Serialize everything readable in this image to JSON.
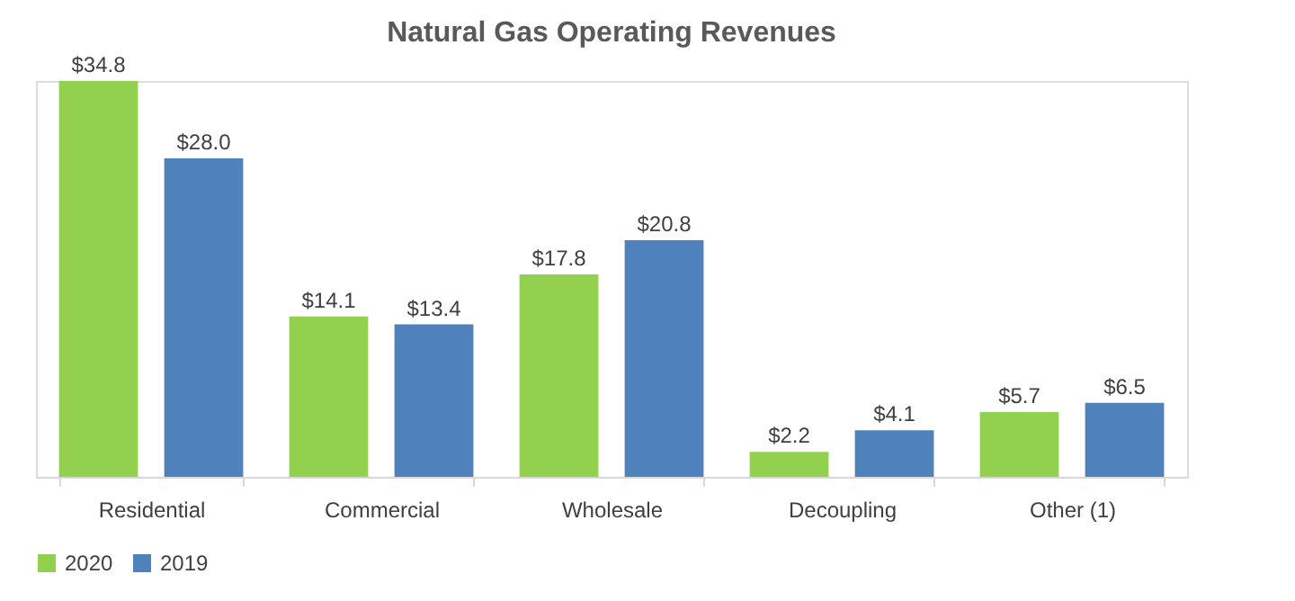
{
  "chart_data": {
    "type": "bar",
    "title": "Natural Gas Operating Revenues",
    "categories": [
      "Residential",
      "Commercial",
      "Wholesale",
      "Decoupling",
      "Other (1)"
    ],
    "series": [
      {
        "name": "2020",
        "color": "#92d050",
        "values": [
          34.8,
          14.1,
          17.8,
          2.2,
          5.7
        ],
        "value_labels": [
          "$34.8",
          "$14.1",
          "$17.8",
          "$2.2",
          "$5.7"
        ]
      },
      {
        "name": "2019",
        "color": "#4f81bd",
        "values": [
          28.0,
          13.4,
          20.8,
          4.1,
          6.5
        ],
        "value_labels": [
          "$28.0",
          "$13.4",
          "$20.8",
          "$4.1",
          "$6.5"
        ]
      }
    ],
    "legend": "bottom",
    "grid": false
  }
}
